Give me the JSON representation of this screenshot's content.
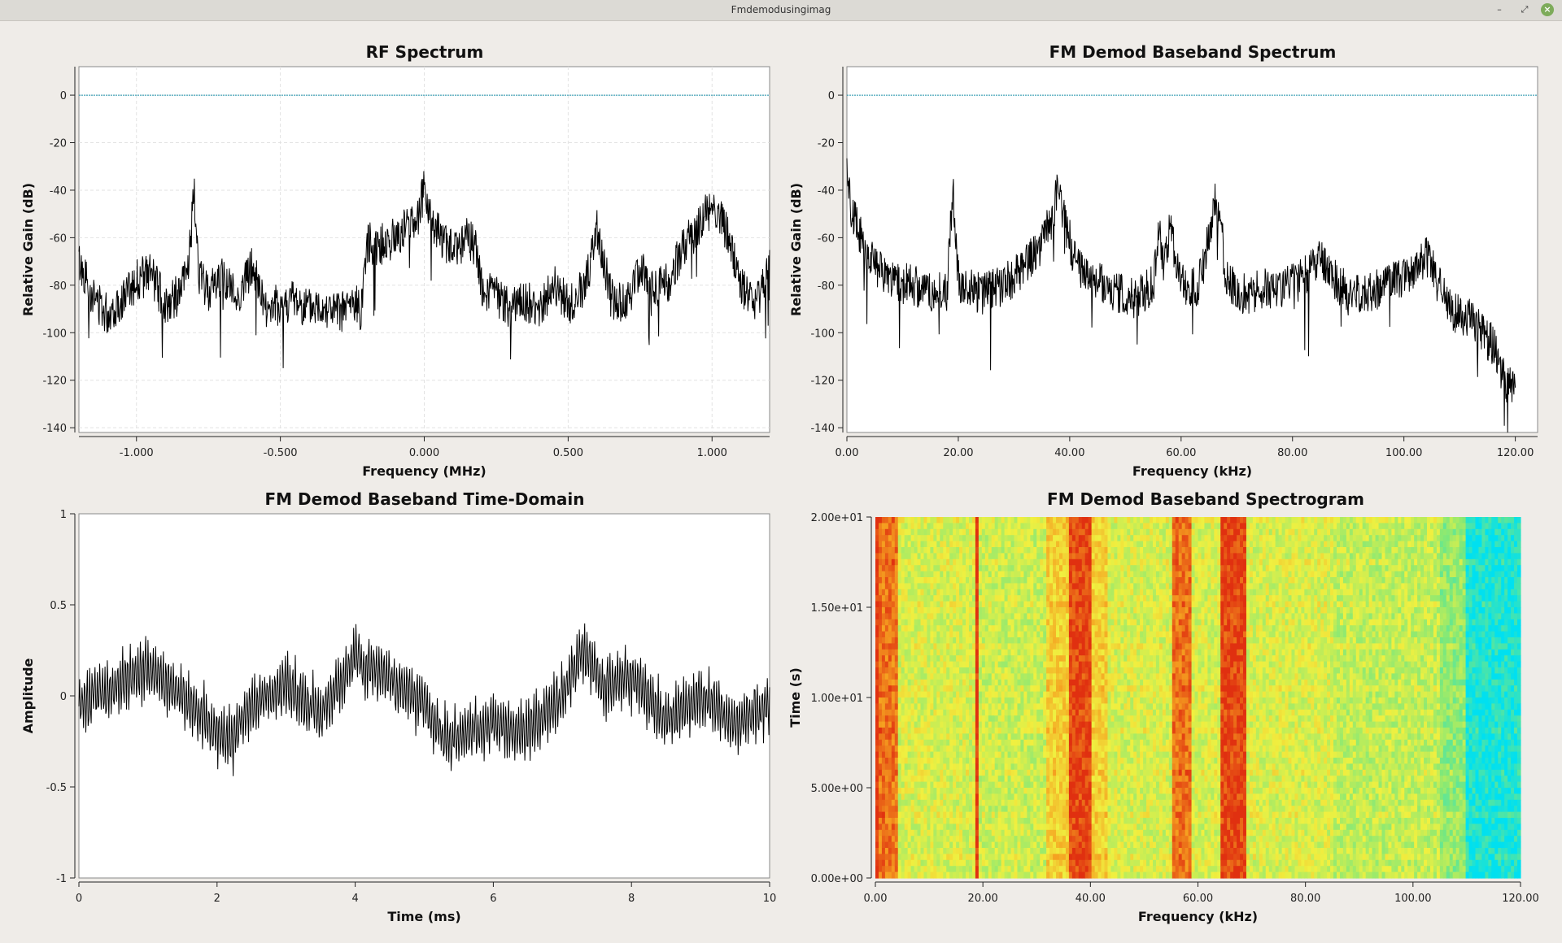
{
  "window": {
    "title": "Fmdemodusingimag"
  },
  "chart_data": [
    {
      "id": "rf",
      "type": "line",
      "title": "RF Spectrum",
      "xlabel": "Frequency (MHz)",
      "ylabel": "Relative Gain (dB)",
      "xlim": [
        -1.2,
        1.2
      ],
      "ylim": [
        -142,
        12
      ],
      "xticks": [
        -1.0,
        -0.5,
        0.0,
        0.5,
        1.0
      ],
      "xtick_labels": [
        "-1.000",
        "-0.500",
        "0.000",
        "0.500",
        "1.000"
      ],
      "yticks": [
        0,
        -20,
        -40,
        -60,
        -80,
        -100,
        -120,
        -140
      ],
      "ytick_labels": [
        "0",
        "-20",
        "-40",
        "-60",
        "-80",
        "-100",
        "-120",
        "-140"
      ],
      "grid": true,
      "reference_line": 0,
      "series": [
        {
          "color": "#000000",
          "x": [
            -1.2,
            -1.15,
            -1.1,
            -1.05,
            -1.0,
            -0.95,
            -0.9,
            -0.85,
            -0.82,
            -0.8,
            -0.78,
            -0.75,
            -0.7,
            -0.65,
            -0.6,
            -0.55,
            -0.5,
            -0.45,
            -0.4,
            -0.35,
            -0.3,
            -0.25,
            -0.22,
            -0.2,
            -0.15,
            -0.1,
            -0.05,
            -0.02,
            0.0,
            0.02,
            0.05,
            0.1,
            0.15,
            0.18,
            0.2,
            0.25,
            0.3,
            0.35,
            0.4,
            0.45,
            0.5,
            0.55,
            0.58,
            0.6,
            0.65,
            0.7,
            0.75,
            0.8,
            0.85,
            0.9,
            0.95,
            1.0,
            1.05,
            1.1,
            1.15,
            1.2
          ],
          "y": [
            -70,
            -85,
            -92,
            -86,
            -78,
            -75,
            -88,
            -84,
            -72,
            -42,
            -78,
            -82,
            -76,
            -86,
            -72,
            -90,
            -88,
            -86,
            -90,
            -88,
            -92,
            -88,
            -90,
            -62,
            -63,
            -60,
            -54,
            -50,
            -40,
            -50,
            -58,
            -66,
            -60,
            -64,
            -82,
            -84,
            -90,
            -86,
            -92,
            -80,
            -88,
            -82,
            -70,
            -55,
            -86,
            -88,
            -72,
            -82,
            -78,
            -64,
            -56,
            -46,
            -58,
            -80,
            -90,
            -70
          ]
        }
      ]
    },
    {
      "id": "baseband",
      "type": "line",
      "title": "FM Demod Baseband Spectrum",
      "xlabel": "Frequency (kHz)",
      "ylabel": "Relative Gain (dB)",
      "xlim": [
        0,
        124
      ],
      "ylim": [
        -142,
        12
      ],
      "xticks": [
        0,
        20,
        40,
        60,
        80,
        100,
        120
      ],
      "xtick_labels": [
        "0.00",
        "20.00",
        "40.00",
        "60.00",
        "80.00",
        "100.00",
        "120.00"
      ],
      "yticks": [
        0,
        -20,
        -40,
        -60,
        -80,
        -100,
        -120,
        -140
      ],
      "ytick_labels": [
        "0",
        "-20",
        "-40",
        "-60",
        "-80",
        "-100",
        "-120",
        "-140"
      ],
      "grid": false,
      "reference_line": 0,
      "series": [
        {
          "color": "#000000",
          "x": [
            0,
            1,
            3,
            5,
            8,
            12,
            16,
            18,
            19,
            20,
            24,
            28,
            32,
            35,
            37,
            38,
            39,
            41,
            44,
            48,
            52,
            55,
            56,
            57,
            58,
            60,
            63,
            65,
            66,
            67,
            68,
            70,
            75,
            80,
            85,
            90,
            95,
            100,
            104,
            106,
            108,
            112,
            116,
            118,
            120
          ],
          "y": [
            -35,
            -50,
            -62,
            -72,
            -78,
            -80,
            -84,
            -82,
            -38,
            -78,
            -84,
            -80,
            -72,
            -62,
            -50,
            -38,
            -52,
            -70,
            -78,
            -82,
            -86,
            -80,
            -58,
            -72,
            -56,
            -80,
            -82,
            -60,
            -45,
            -50,
            -76,
            -84,
            -82,
            -80,
            -70,
            -84,
            -82,
            -76,
            -68,
            -78,
            -90,
            -95,
            -105,
            -120,
            -122
          ]
        }
      ]
    },
    {
      "id": "timedomain",
      "type": "line",
      "title": "FM Demod Baseband Time-Domain",
      "xlabel": "Time (ms)",
      "ylabel": "Amplitude",
      "xlim": [
        0,
        10
      ],
      "ylim": [
        -1,
        1
      ],
      "xticks": [
        0,
        2,
        4,
        6,
        8,
        10
      ],
      "xtick_labels": [
        "0",
        "2",
        "4",
        "6",
        "8",
        "10"
      ],
      "yticks": [
        1,
        0.5,
        0,
        -0.5,
        -1
      ],
      "ytick_labels": [
        "1",
        "0.5",
        "0",
        "-0.5",
        "-1"
      ],
      "grid": false,
      "series": [
        {
          "color": "#000000",
          "x": [
            0,
            0.5,
            1.0,
            1.5,
            2.0,
            2.2,
            2.5,
            3.0,
            3.5,
            4.0,
            4.5,
            5.0,
            5.3,
            5.6,
            6.0,
            6.5,
            7.0,
            7.3,
            7.6,
            8.0,
            8.5,
            9.0,
            9.5,
            10
          ],
          "y": [
            -0.05,
            0.05,
            0.15,
            0.0,
            -0.2,
            -0.25,
            -0.05,
            0.05,
            -0.1,
            0.2,
            0.1,
            -0.05,
            -0.25,
            -0.2,
            -0.15,
            -0.2,
            0.0,
            0.25,
            0.05,
            0.1,
            -0.15,
            0.0,
            -0.15,
            -0.05
          ]
        }
      ]
    },
    {
      "id": "spectrogram",
      "type": "heatmap",
      "title": "FM Demod Baseband Spectrogram",
      "xlabel": "Frequency (kHz)",
      "ylabel": "Time (s)",
      "xlim": [
        0,
        120
      ],
      "ylim": [
        0,
        20
      ],
      "xticks": [
        0,
        20,
        40,
        60,
        80,
        100,
        120
      ],
      "xtick_labels": [
        "0.00",
        "20.00",
        "40.00",
        "60.00",
        "80.00",
        "100.00",
        "120.00"
      ],
      "yticks": [
        0,
        5,
        10,
        15,
        20
      ],
      "ytick_labels": [
        "0.00e+00",
        "5.00e+00",
        "1.00e+01",
        "1.50e+01",
        "2.00e+01"
      ],
      "colorscale": [
        "#00e0f0",
        "#7ee87a",
        "#f0f040",
        "#f5a020",
        "#e03010"
      ],
      "bands": [
        {
          "from": 0,
          "to": 0.6,
          "level": 1.0
        },
        {
          "from": 0.6,
          "to": 4,
          "level": 0.85
        },
        {
          "from": 4,
          "to": 18.6,
          "level": 0.45
        },
        {
          "from": 18.6,
          "to": 19.4,
          "level": 1.0
        },
        {
          "from": 19.4,
          "to": 32,
          "level": 0.42
        },
        {
          "from": 32,
          "to": 36,
          "level": 0.6
        },
        {
          "from": 36,
          "to": 40,
          "level": 0.95
        },
        {
          "from": 40,
          "to": 43,
          "level": 0.6
        },
        {
          "from": 43,
          "to": 55,
          "level": 0.45
        },
        {
          "from": 55,
          "to": 59,
          "level": 0.85
        },
        {
          "from": 59,
          "to": 64,
          "level": 0.45
        },
        {
          "from": 64,
          "to": 69,
          "level": 0.95
        },
        {
          "from": 69,
          "to": 85,
          "level": 0.45
        },
        {
          "from": 85,
          "to": 105,
          "level": 0.4
        },
        {
          "from": 105,
          "to": 110,
          "level": 0.3
        },
        {
          "from": 110,
          "to": 120,
          "level": 0.05
        }
      ]
    }
  ]
}
